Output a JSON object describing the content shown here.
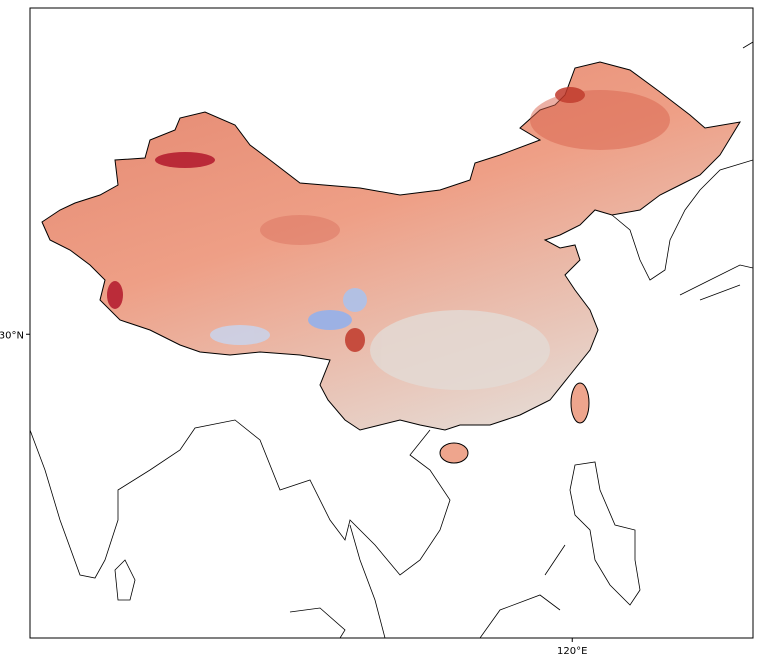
{
  "map": {
    "xlim": [
      72,
      136
    ],
    "ylim": [
      3,
      59
    ],
    "xticks": [
      {
        "value": 120,
        "label": "120°E"
      }
    ],
    "yticks": [
      {
        "value": 30,
        "label": "30°N"
      }
    ]
  }
}
